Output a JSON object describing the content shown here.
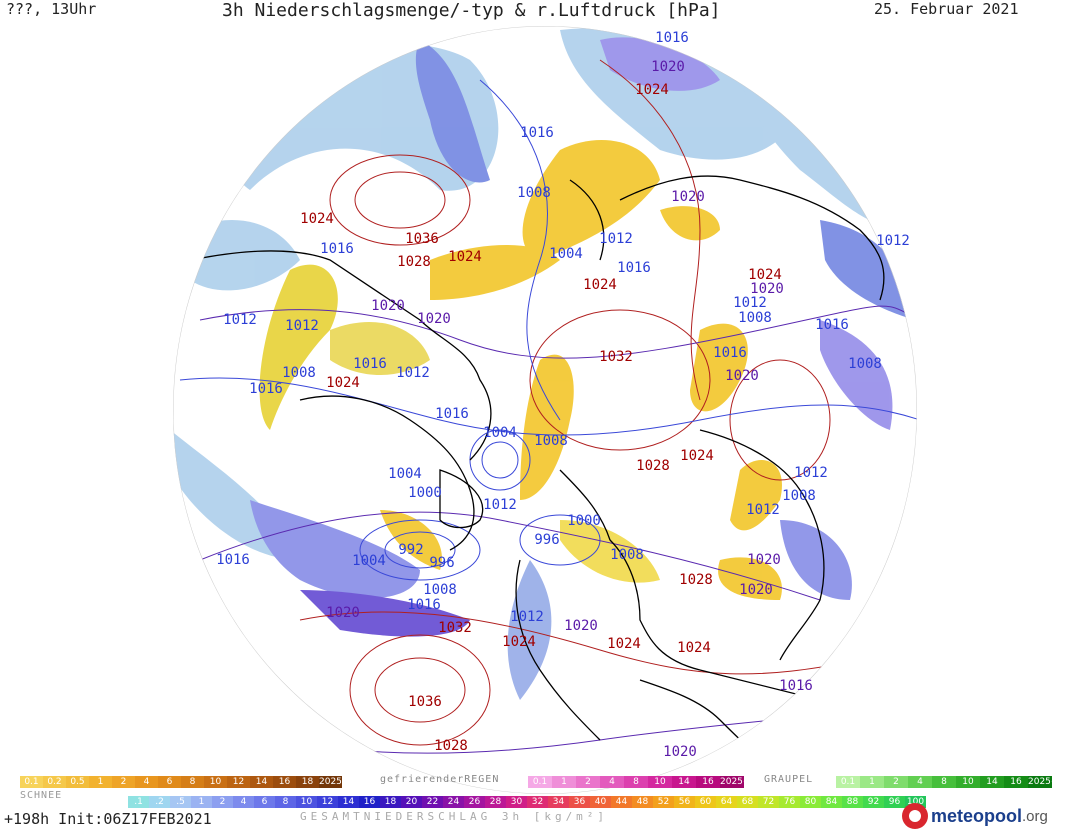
{
  "header": {
    "left": "???, 13Uhr",
    "title": "3h Niederschlagsmenge/-typ & r.Luftdruck [hPa]",
    "date": "25. Februar 2021"
  },
  "isobars": [
    {
      "text": "1016",
      "c": "blue"
    },
    {
      "text": "1020",
      "c": "purple"
    },
    {
      "text": "1024",
      "c": "red"
    },
    {
      "text": "1016",
      "c": "blue"
    },
    {
      "text": "1008",
      "c": "blue"
    },
    {
      "text": "1020",
      "c": "purple"
    },
    {
      "text": "1024",
      "c": "red"
    },
    {
      "text": "1016",
      "c": "blue"
    },
    {
      "text": "1036",
      "c": "red"
    },
    {
      "text": "1028",
      "c": "red"
    },
    {
      "text": "1024",
      "c": "red"
    },
    {
      "text": "1004",
      "c": "blue"
    },
    {
      "text": "1012",
      "c": "blue"
    },
    {
      "text": "1016",
      "c": "blue"
    },
    {
      "text": "1012",
      "c": "blue"
    },
    {
      "text": "1024",
      "c": "red"
    },
    {
      "text": "1024",
      "c": "red"
    },
    {
      "text": "1020",
      "c": "purple"
    },
    {
      "text": "1012",
      "c": "blue"
    },
    {
      "text": "1012",
      "c": "blue"
    },
    {
      "text": "1020",
      "c": "purple"
    },
    {
      "text": "1012",
      "c": "blue"
    },
    {
      "text": "1020",
      "c": "purple"
    },
    {
      "text": "1008",
      "c": "blue"
    },
    {
      "text": "1016",
      "c": "blue"
    },
    {
      "text": "1016",
      "c": "blue"
    },
    {
      "text": "1012",
      "c": "blue"
    },
    {
      "text": "1032",
      "c": "red"
    },
    {
      "text": "1016",
      "c": "blue"
    },
    {
      "text": "1008",
      "c": "blue"
    },
    {
      "text": "1024",
      "c": "red"
    },
    {
      "text": "1016",
      "c": "blue"
    },
    {
      "text": "1020",
      "c": "purple"
    },
    {
      "text": "1008",
      "c": "blue"
    },
    {
      "text": "1016",
      "c": "blue"
    },
    {
      "text": "1004",
      "c": "blue"
    },
    {
      "text": "1008",
      "c": "blue"
    },
    {
      "text": "1024",
      "c": "red"
    },
    {
      "text": "1028",
      "c": "red"
    },
    {
      "text": "1004",
      "c": "blue"
    },
    {
      "text": "1000",
      "c": "blue"
    },
    {
      "text": "1012",
      "c": "blue"
    },
    {
      "text": "1012",
      "c": "blue"
    },
    {
      "text": "1008",
      "c": "blue"
    },
    {
      "text": "1012",
      "c": "blue"
    },
    {
      "text": "1000",
      "c": "blue"
    },
    {
      "text": "996",
      "c": "blue"
    },
    {
      "text": "992",
      "c": "blue"
    },
    {
      "text": "996",
      "c": "blue"
    },
    {
      "text": "1004",
      "c": "blue"
    },
    {
      "text": "1008",
      "c": "blue"
    },
    {
      "text": "1016",
      "c": "blue"
    },
    {
      "text": "1020",
      "c": "purple"
    },
    {
      "text": "1020",
      "c": "purple"
    },
    {
      "text": "1016",
      "c": "blue"
    },
    {
      "text": "1008",
      "c": "blue"
    },
    {
      "text": "1028",
      "c": "red"
    },
    {
      "text": "1020",
      "c": "purple"
    },
    {
      "text": "1032",
      "c": "red"
    },
    {
      "text": "1024",
      "c": "red"
    },
    {
      "text": "1012",
      "c": "blue"
    },
    {
      "text": "1020",
      "c": "purple"
    },
    {
      "text": "1024",
      "c": "red"
    },
    {
      "text": "1024",
      "c": "red"
    },
    {
      "text": "1036",
      "c": "red"
    },
    {
      "text": "1016",
      "c": "purple"
    },
    {
      "text": "1028",
      "c": "red"
    },
    {
      "text": "1020",
      "c": "purple"
    }
  ],
  "legend": {
    "snow": {
      "label": "SCHNEE",
      "cells": [
        "0.1",
        "0.2",
        "0.5",
        "1",
        "2",
        "4",
        "6",
        "8",
        "10",
        "12",
        "14",
        "16",
        "18",
        "2025+"
      ]
    },
    "freezing_rain": {
      "label": "gefrierenderREGEN",
      "cells": [
        "0.1",
        "1",
        "2",
        "4",
        "8",
        "10",
        "14",
        "16",
        "2025+"
      ]
    },
    "graupel": {
      "label": "GRAUPEL",
      "cells": [
        "0.1",
        "1",
        "2",
        "4",
        "8",
        "10",
        "14",
        "16",
        "2025+"
      ]
    },
    "total": {
      "label": "GESAMTNIEDERSCHLAG 3h [kg/m²]",
      "cells": [
        ".1",
        ".2",
        ".5",
        "1",
        "2",
        "4",
        "6",
        "8",
        "10",
        "12",
        "14",
        "16",
        "18",
        "20",
        "22",
        "24",
        "26",
        "28",
        "30",
        "32",
        "34",
        "36",
        "40",
        "44",
        "48",
        "52",
        "56",
        "60",
        "64",
        "68",
        "72",
        "76",
        "80",
        "84",
        "88",
        "92",
        "96",
        "100"
      ]
    }
  },
  "footer": {
    "run": "+198h Init:06Z17FEB2021",
    "logo_main": "meteopool",
    "logo_tld": ".org"
  },
  "colors": {
    "blue": "#2c3fd6",
    "purple": "#5a1aa8",
    "red": "#a00000"
  }
}
